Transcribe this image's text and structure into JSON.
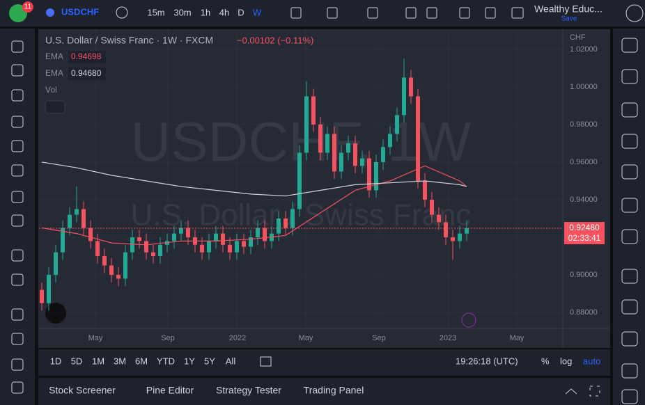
{
  "topbar": {
    "badge": "11",
    "symbol": "USDCHF",
    "timeframes": [
      "15m",
      "30m",
      "1h",
      "4h",
      "D",
      "W"
    ],
    "account": "Wealthy Educ...",
    "save": "Save"
  },
  "legend": {
    "title": "U.S. Dollar / Swiss Franc · 1W · FXCM",
    "change": "−0.00102 (−0.11%)",
    "vol": "Vol"
  },
  "watermark": {
    "symbol": "USDCHF, 1W",
    "name": "U.S. Dollar / Swiss Franc"
  },
  "chart": {
    "type": "candlestick",
    "currency": "CHF",
    "up_color": "#22ab94",
    "down_color": "#f7525f",
    "xlim": [
      -0.4,
      74.8
    ],
    "ylim": [
      0.8715,
      1.0307
    ],
    "yticks": [
      {
        "value": 0.88,
        "label": "0.88000"
      },
      {
        "value": 0.9,
        "label": "0.90000"
      },
      {
        "value": 0.92,
        "label": "0.92000"
      },
      {
        "value": 0.94,
        "label": "0.94000"
      },
      {
        "value": 0.96,
        "label": "0.96000"
      },
      {
        "value": 0.98,
        "label": "0.98000"
      },
      {
        "value": 1.0,
        "label": "1.00000"
      },
      {
        "value": 1.02,
        "label": "1.02000"
      }
    ],
    "xticks": [
      {
        "value": 7.7,
        "label": "May"
      },
      {
        "value": 18.1,
        "label": "Sep"
      },
      {
        "value": 28.1,
        "label": "2022"
      },
      {
        "value": 37.9,
        "label": "May"
      },
      {
        "value": 48.4,
        "label": "Sep"
      },
      {
        "value": 58.3,
        "label": "2023"
      },
      {
        "value": 68.2,
        "label": "May"
      }
    ],
    "open": [
      0.892,
      0.885,
      0.9,
      0.912,
      0.925,
      0.932,
      0.935,
      0.925,
      0.918,
      0.91,
      0.905,
      0.9,
      0.898,
      0.912,
      0.92,
      0.918,
      0.912,
      0.91,
      0.916,
      0.918,
      0.922,
      0.925,
      0.92,
      0.916,
      0.912,
      0.918,
      0.922,
      0.916,
      0.912,
      0.918,
      0.915,
      0.92,
      0.925,
      0.918,
      0.922,
      0.93,
      0.925,
      0.935,
      0.965,
      0.995,
      0.98,
      0.965,
      0.975,
      0.955,
      0.965,
      0.97,
      0.958,
      0.962,
      0.945,
      0.96,
      0.968,
      0.975,
      0.985,
      1.005,
      0.995,
      0.95,
      0.94,
      0.932,
      0.928,
      0.92,
      0.918,
      0.922
    ],
    "high": [
      0.896,
      0.904,
      0.916,
      0.929,
      0.936,
      0.947,
      0.939,
      0.929,
      0.922,
      0.914,
      0.909,
      0.904,
      0.916,
      0.924,
      0.924,
      0.922,
      0.916,
      0.92,
      0.922,
      0.926,
      0.929,
      0.929,
      0.924,
      0.92,
      0.922,
      0.926,
      0.926,
      0.92,
      0.922,
      0.922,
      0.924,
      0.929,
      0.929,
      0.926,
      0.934,
      0.934,
      0.939,
      0.969,
      1.003,
      0.999,
      0.984,
      0.979,
      0.979,
      0.969,
      0.974,
      0.974,
      0.966,
      0.966,
      0.964,
      0.972,
      0.979,
      0.989,
      1.015,
      1.009,
      0.999,
      0.954,
      0.944,
      0.936,
      0.932,
      0.924,
      0.926,
      0.929
    ],
    "low": [
      0.881,
      0.881,
      0.896,
      0.908,
      0.921,
      0.928,
      0.921,
      0.914,
      0.906,
      0.901,
      0.896,
      0.894,
      0.894,
      0.908,
      0.914,
      0.908,
      0.906,
      0.906,
      0.912,
      0.914,
      0.918,
      0.916,
      0.912,
      0.908,
      0.908,
      0.914,
      0.912,
      0.908,
      0.908,
      0.911,
      0.911,
      0.916,
      0.914,
      0.914,
      0.918,
      0.921,
      0.921,
      0.931,
      0.961,
      0.976,
      0.961,
      0.961,
      0.951,
      0.951,
      0.961,
      0.954,
      0.954,
      0.941,
      0.941,
      0.956,
      0.964,
      0.971,
      0.981,
      0.991,
      0.946,
      0.936,
      0.928,
      0.924,
      0.916,
      0.908,
      0.914,
      0.918
    ],
    "close": [
      0.885,
      0.9,
      0.912,
      0.925,
      0.932,
      0.935,
      0.925,
      0.918,
      0.91,
      0.905,
      0.9,
      0.898,
      0.912,
      0.92,
      0.918,
      0.912,
      0.91,
      0.916,
      0.918,
      0.922,
      0.925,
      0.92,
      0.916,
      0.912,
      0.918,
      0.922,
      0.916,
      0.912,
      0.918,
      0.915,
      0.92,
      0.925,
      0.918,
      0.922,
      0.93,
      0.925,
      0.935,
      0.965,
      0.995,
      0.98,
      0.965,
      0.975,
      0.955,
      0.965,
      0.97,
      0.958,
      0.962,
      0.945,
      0.96,
      0.968,
      0.975,
      0.985,
      1.005,
      0.995,
      0.95,
      0.94,
      0.932,
      0.928,
      0.92,
      0.918,
      0.922,
      0.9248
    ],
    "series": [
      {
        "name": "EMA",
        "color": "#f7525f",
        "last": "0.94698",
        "x": [
          0,
          5,
          10,
          15,
          20,
          25,
          30,
          35,
          40,
          45,
          50,
          55,
          60,
          61
        ],
        "values": [
          0.925,
          0.922,
          0.917,
          0.916,
          0.918,
          0.918,
          0.919,
          0.921,
          0.933,
          0.945,
          0.95,
          0.958,
          0.95,
          0.947
        ]
      },
      {
        "name": "EMA",
        "color": "#d1d4dc",
        "last": "0.94680",
        "x": [
          0,
          5,
          10,
          15,
          20,
          25,
          30,
          35,
          40,
          45,
          50,
          55,
          60,
          61
        ],
        "values": [
          0.96,
          0.957,
          0.953,
          0.95,
          0.947,
          0.945,
          0.943,
          0.942,
          0.945,
          0.948,
          0.949,
          0.95,
          0.948,
          0.947
        ]
      }
    ],
    "price": {
      "value": 0.9248,
      "label": "0.92480",
      "countdown": "02:33:41"
    }
  },
  "rangebar": {
    "ranges": [
      "1D",
      "5D",
      "1M",
      "3M",
      "6M",
      "YTD",
      "1Y",
      "5Y",
      "All"
    ],
    "clock": "19:26:18 (UTC)",
    "percent": "%",
    "log": "log",
    "auto": "auto"
  },
  "bottom": {
    "tabs": [
      "Stock Screener",
      "Pine Editor",
      "Strategy Tester",
      "Trading Panel"
    ]
  }
}
